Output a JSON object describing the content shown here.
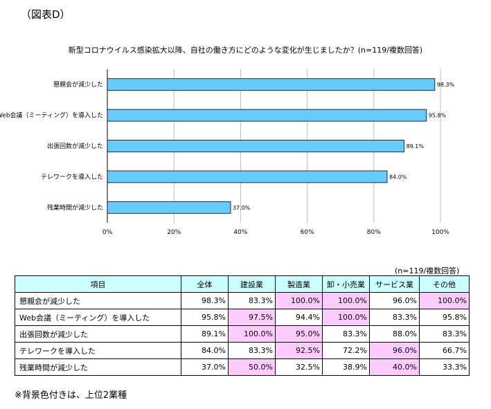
{
  "figure_label": "（図表D）",
  "chart_data": {
    "type": "bar",
    "orientation": "horizontal",
    "title": "新型コロナウイルス感染拡大以降、自社の働き方にどのような変化が生じましたか？(n=119/複数回答)",
    "categories": [
      "懇親会が減少した",
      "Web会議（ミーティング）を導入した",
      "出張回数が減少した",
      "テレワークを導入した",
      "残業時間が減少した"
    ],
    "values": [
      98.3,
      95.8,
      89.1,
      84.0,
      37.0
    ],
    "value_labels": [
      "98.3%",
      "95.8%",
      "89.1%",
      "84.0%",
      "37.0%"
    ],
    "xlim": [
      0,
      100
    ],
    "x_ticks": [
      "0%",
      "20%",
      "40%",
      "60%",
      "80%",
      "100%"
    ],
    "grid": true,
    "bar_color": "#66ccff"
  },
  "table": {
    "note": "(n=119/複数回答)",
    "headers": [
      "項目",
      "全体",
      "建設業",
      "製造業",
      "卸・小売業",
      "サービス業",
      "その他"
    ],
    "rows": [
      {
        "label": "懇親会が減少した",
        "values": [
          "98.3%",
          "83.3%",
          "100.0%",
          "100.0%",
          "96.0%",
          "100.0%"
        ],
        "highlight": [
          false,
          false,
          true,
          true,
          false,
          true
        ]
      },
      {
        "label": "Web会議（ミーティング）を導入した",
        "values": [
          "95.8%",
          "97.5%",
          "94.4%",
          "100.0%",
          "83.3%",
          "95.8%"
        ],
        "highlight": [
          false,
          true,
          false,
          true,
          false,
          false
        ]
      },
      {
        "label": "出張回数が減少した",
        "values": [
          "89.1%",
          "100.0%",
          "95.0%",
          "83.3%",
          "88.0%",
          "83.3%"
        ],
        "highlight": [
          false,
          true,
          true,
          false,
          false,
          false
        ]
      },
      {
        "label": "テレワークを導入した",
        "values": [
          "84.0%",
          "83.3%",
          "92.5%",
          "72.2%",
          "96.0%",
          "66.7%"
        ],
        "highlight": [
          false,
          false,
          true,
          false,
          true,
          false
        ]
      },
      {
        "label": "残業時間が減少した",
        "values": [
          "37.0%",
          "50.0%",
          "32.5%",
          "38.9%",
          "40.0%",
          "33.3%"
        ],
        "highlight": [
          false,
          true,
          false,
          false,
          true,
          false
        ]
      }
    ],
    "header_color": "#ccffff",
    "highlight_color": "#ffccff"
  },
  "footnote": "※背景色付きは、上位2業種"
}
